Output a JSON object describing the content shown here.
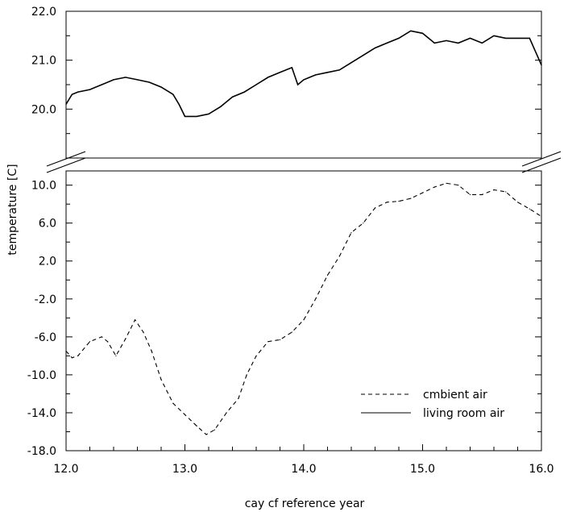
{
  "chart_data": {
    "type": "line",
    "title": "",
    "xlabel": "cay cf reference year",
    "ylabel": "temperature [C]",
    "xlim": [
      12.0,
      16.0
    ],
    "x_ticks": [
      "12.0",
      "13.0",
      "14.0",
      "15.0",
      "16.0"
    ],
    "broken_y_axis": true,
    "upper_panel": {
      "ylim": [
        19.0,
        22.0
      ],
      "y_ticks": [
        "20.0",
        "21.0",
        "22.0"
      ]
    },
    "lower_panel": {
      "ylim": [
        -18.0,
        11.5
      ],
      "y_ticks": [
        "-18.0",
        "-14.0",
        "-10.0",
        "-6.0",
        "-2.0",
        "2.0",
        "6.0",
        "10.0"
      ]
    },
    "legend_position": "bottom-right",
    "grid": false,
    "series": [
      {
        "name": "cmbient air",
        "line_style": "dashed",
        "panel": "lower",
        "x": [
          12.0,
          12.05,
          12.1,
          12.2,
          12.3,
          12.35,
          12.42,
          12.5,
          12.58,
          12.65,
          12.72,
          12.8,
          12.9,
          13.0,
          13.1,
          13.18,
          13.25,
          13.35,
          13.45,
          13.52,
          13.6,
          13.7,
          13.8,
          13.9,
          14.0,
          14.1,
          14.2,
          14.3,
          14.4,
          14.5,
          14.6,
          14.7,
          14.8,
          14.9,
          15.0,
          15.1,
          15.2,
          15.3,
          15.4,
          15.5,
          15.6,
          15.7,
          15.8,
          15.9,
          16.0
        ],
        "y": [
          -7.5,
          -8.2,
          -8.0,
          -6.5,
          -6.0,
          -6.5,
          -8.0,
          -6.2,
          -4.2,
          -5.5,
          -7.5,
          -10.5,
          -13.0,
          -14.2,
          -15.4,
          -16.3,
          -15.8,
          -14.0,
          -12.5,
          -10.0,
          -8.0,
          -6.5,
          -6.3,
          -5.5,
          -4.2,
          -2.0,
          0.5,
          2.5,
          5.0,
          6.0,
          7.6,
          8.2,
          8.3,
          8.6,
          9.2,
          9.8,
          10.2,
          10.0,
          9.0,
          9.0,
          9.5,
          9.3,
          8.2,
          7.5,
          6.7
        ]
      },
      {
        "name": "living room air",
        "line_style": "solid",
        "panel": "upper",
        "x": [
          12.0,
          12.05,
          12.1,
          12.2,
          12.3,
          12.4,
          12.5,
          12.6,
          12.7,
          12.8,
          12.9,
          12.95,
          13.0,
          13.1,
          13.2,
          13.3,
          13.4,
          13.5,
          13.6,
          13.7,
          13.8,
          13.9,
          13.95,
          14.0,
          14.1,
          14.2,
          14.3,
          14.4,
          14.5,
          14.6,
          14.7,
          14.8,
          14.9,
          15.0,
          15.1,
          15.2,
          15.3,
          15.4,
          15.5,
          15.6,
          15.7,
          15.8,
          15.9,
          16.0
        ],
        "y": [
          20.1,
          20.3,
          20.35,
          20.4,
          20.5,
          20.6,
          20.65,
          20.6,
          20.55,
          20.45,
          20.3,
          20.1,
          19.85,
          19.85,
          19.9,
          20.05,
          20.25,
          20.35,
          20.5,
          20.65,
          20.75,
          20.85,
          20.5,
          20.6,
          20.7,
          20.75,
          20.8,
          20.95,
          21.1,
          21.25,
          21.35,
          21.45,
          21.6,
          21.55,
          21.35,
          21.4,
          21.35,
          21.45,
          21.35,
          21.5,
          21.45,
          21.45,
          21.45,
          20.9
        ]
      }
    ]
  }
}
